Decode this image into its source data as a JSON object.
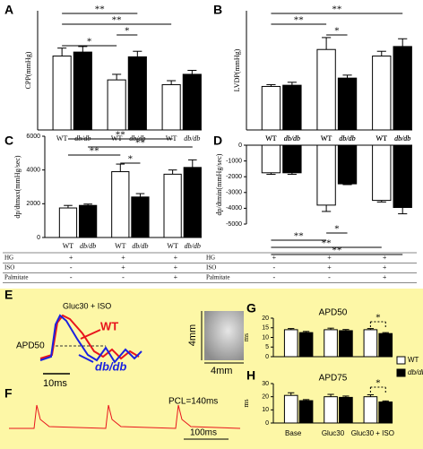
{
  "chart_data": [
    {
      "type": "bar",
      "panel_label": "A",
      "y_label": "CPP(mmHg)",
      "categories": [
        "WT",
        "db/db",
        "WT",
        "db/db",
        "WT",
        "db/db"
      ],
      "values": [
        93,
        98,
        63,
        92,
        57,
        70
      ],
      "errors": [
        10,
        7,
        7,
        7,
        5,
        5
      ],
      "colors": [
        "#ffffff",
        "#000000",
        "#ffffff",
        "#000000",
        "#ffffff",
        "#000000"
      ],
      "ylim": [
        0,
        150
      ],
      "annotations": [
        {
          "text": "**",
          "from": 0,
          "to": 3
        },
        {
          "text": "**",
          "from": 0,
          "to": 4
        },
        {
          "text": "*",
          "from": 2,
          "to": 3
        },
        {
          "text": "*",
          "from": 0,
          "to": 2
        }
      ]
    },
    {
      "type": "bar",
      "panel_label": "B",
      "y_label": "LVDP(mmHg)",
      "categories": [
        "WT",
        "db/db",
        "WT",
        "db/db",
        "WT",
        "db/db"
      ],
      "values": [
        73,
        75,
        135,
        87,
        124,
        140
      ],
      "errors": [
        3,
        5,
        20,
        5,
        8,
        13
      ],
      "colors": [
        "#ffffff",
        "#000000",
        "#ffffff",
        "#000000",
        "#ffffff",
        "#000000"
      ],
      "ylim": [
        0,
        200
      ],
      "annotations": [
        {
          "text": "**",
          "from": 0,
          "to": 5
        },
        {
          "text": "**",
          "from": 0,
          "to": 2
        },
        {
          "text": "*",
          "from": 2,
          "to": 3
        }
      ]
    },
    {
      "type": "bar",
      "panel_label": "C",
      "y_label": "dp/dtmax(mmHg/sec)",
      "categories": [
        "WT",
        "db/db",
        "WT",
        "db/db",
        "WT",
        "db/db"
      ],
      "values": [
        1750,
        1900,
        3900,
        2400,
        3750,
        4150
      ],
      "errors": [
        150,
        80,
        450,
        200,
        250,
        450
      ],
      "colors": [
        "#ffffff",
        "#000000",
        "#ffffff",
        "#000000",
        "#ffffff",
        "#000000"
      ],
      "ylim": [
        0,
        6000
      ],
      "yticks": [
        0,
        2000,
        4000,
        6000
      ],
      "annotations": [
        {
          "text": "**",
          "from": 0,
          "to": 4
        },
        {
          "text": "**",
          "from": 1,
          "to": 5
        },
        {
          "text": "**",
          "from": 0,
          "to": 2
        },
        {
          "text": "*",
          "from": 2,
          "to": 3
        }
      ],
      "conditions": {
        "rows": [
          "HG",
          "ISO",
          "Palmitate"
        ],
        "signs": [
          [
            "+",
            "+",
            "+"
          ],
          [
            "-",
            "+",
            "+"
          ],
          [
            "-",
            "-",
            "+"
          ]
        ]
      }
    },
    {
      "type": "bar",
      "panel_label": "D",
      "y_label": "dp/dtmin(mmHg/sec)",
      "categories": [
        "WT",
        "db/db",
        "WT",
        "db/db",
        "WT",
        "db/db"
      ],
      "values": [
        -1750,
        -1750,
        -3800,
        -2450,
        -3500,
        -3950
      ],
      "errors": [
        100,
        100,
        400,
        50,
        100,
        400
      ],
      "colors": [
        "#ffffff",
        "#000000",
        "#ffffff",
        "#000000",
        "#ffffff",
        "#000000"
      ],
      "ylim": [
        -5000,
        0
      ],
      "yticks": [
        0,
        -1000,
        -2000,
        -3000,
        -4000,
        -5000
      ],
      "annotations": [
        {
          "text": "*",
          "from": 2,
          "to": 3
        },
        {
          "text": "**",
          "from": 0,
          "to": 2
        },
        {
          "text": "**",
          "from": 0,
          "to": 4
        },
        {
          "text": "**",
          "from": 0,
          "to": 5
        }
      ],
      "conditions": {
        "rows": [
          "HG",
          "ISO",
          "Palmitate"
        ],
        "signs": [
          [
            "+",
            "+",
            "+"
          ],
          [
            "-",
            "+",
            "+"
          ],
          [
            "-",
            "-",
            "+"
          ]
        ]
      }
    },
    {
      "type": "grouped_bar",
      "panel_label": "G",
      "title": "APD50",
      "y_label": "ms",
      "categories": [
        null,
        null,
        null
      ],
      "series": [
        {
          "name": "WT",
          "color": "#ffffff",
          "values": [
            14,
            14,
            14
          ],
          "errors": [
            0.6,
            0.8,
            0.6
          ]
        },
        {
          "name": "db/db",
          "color": "#000000",
          "values": [
            12.5,
            13.5,
            12
          ],
          "errors": [
            0.6,
            0.6,
            0.5
          ]
        }
      ],
      "ylim": [
        0,
        20
      ],
      "yticks": [
        0,
        5,
        10,
        15,
        20
      ],
      "annotations": [
        {
          "text": "*",
          "from": 4,
          "to": 5
        }
      ]
    },
    {
      "type": "grouped_bar",
      "panel_label": "H",
      "title": "APD75",
      "y_label": "ms",
      "categories": [
        "Base",
        "Gluc30",
        "Gluc30 + ISO"
      ],
      "series": [
        {
          "name": "WT",
          "color": "#ffffff",
          "values": [
            21,
            20,
            20
          ],
          "errors": [
            2,
            1.8,
            1.5
          ]
        },
        {
          "name": "db/db",
          "color": "#000000",
          "values": [
            17,
            19.5,
            16
          ],
          "errors": [
            0.8,
            1,
            0.8
          ]
        }
      ],
      "ylim": [
        0,
        30
      ],
      "yticks": [
        0,
        10,
        20,
        30
      ],
      "annotations": [
        {
          "text": "*",
          "from": 4,
          "to": 5
        }
      ]
    }
  ],
  "panel_e": {
    "label": "E",
    "title": "Gluc30 + ISO",
    "wt": "WT",
    "apd": "APD50",
    "db": "db/db",
    "time_scale": "10ms",
    "scale_v": "4mm",
    "scale_h": "4mm"
  },
  "panel_f": {
    "label": "F",
    "pcl": "PCL=140ms",
    "time_scale": "100ms"
  }
}
